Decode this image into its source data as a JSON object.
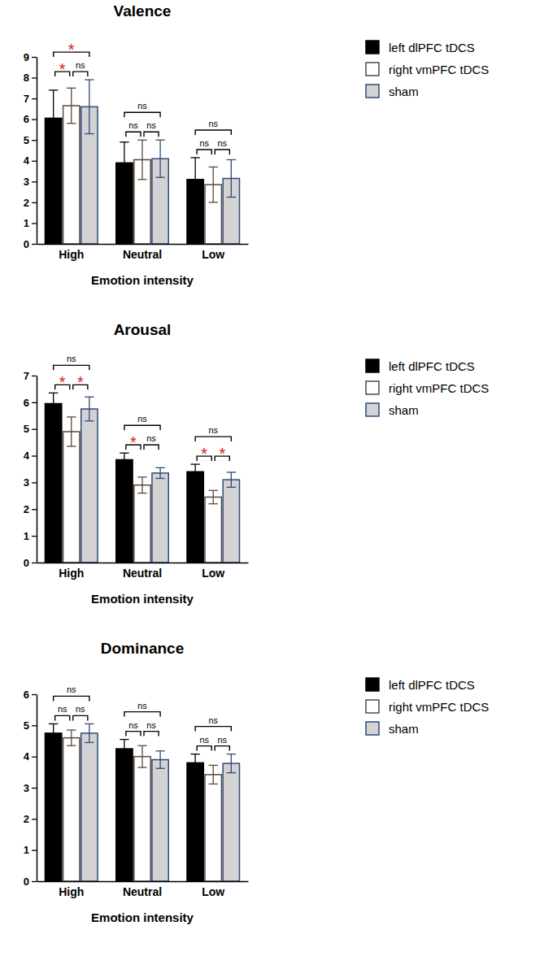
{
  "chart_data": [
    {
      "type": "bar",
      "title": "Valence",
      "x_label": "Emotion intensity",
      "categories": [
        "High",
        "Neutral",
        "Low"
      ],
      "series": [
        {
          "name": "left dlPFC tDCS",
          "color": "#000000",
          "values": [
            6.05,
            3.9,
            3.1
          ],
          "errors": [
            1.35,
            1.0,
            1.05
          ]
        },
        {
          "name": "right vmPFC tDCS",
          "color": "#ffffff",
          "values": [
            6.65,
            4.05,
            2.85
          ],
          "errors": [
            0.85,
            0.95,
            0.85
          ]
        },
        {
          "name": "sham",
          "color": "#d3d3d3",
          "values": [
            6.6,
            4.1,
            3.15
          ],
          "errors": [
            1.3,
            0.9,
            0.9
          ]
        }
      ],
      "ylim": [
        0,
        9
      ],
      "yticks": [
        0,
        1,
        2,
        3,
        4,
        5,
        6,
        7,
        8,
        9
      ],
      "grid": false,
      "legend": "right",
      "brackets": [
        {
          "category": "High",
          "from": "left dlPFC tDCS",
          "to": "right vmPFC tDCS",
          "label": "*"
        },
        {
          "category": "High",
          "from": "right vmPFC tDCS",
          "to": "sham",
          "label": "ns"
        },
        {
          "category": "High",
          "from": "left dlPFC tDCS",
          "to": "sham",
          "label": "*"
        },
        {
          "category": "Neutral",
          "from": "left dlPFC tDCS",
          "to": "right vmPFC tDCS",
          "label": "ns"
        },
        {
          "category": "Neutral",
          "from": "right vmPFC tDCS",
          "to": "sham",
          "label": "ns"
        },
        {
          "category": "Neutral",
          "from": "left dlPFC tDCS",
          "to": "sham",
          "label": "ns"
        },
        {
          "category": "Low",
          "from": "left dlPFC tDCS",
          "to": "right vmPFC tDCS",
          "label": "ns"
        },
        {
          "category": "Low",
          "from": "right vmPFC tDCS",
          "to": "sham",
          "label": "ns"
        },
        {
          "category": "Low",
          "from": "left dlPFC tDCS",
          "to": "sham",
          "label": "ns"
        }
      ]
    },
    {
      "type": "bar",
      "title": "Arousal",
      "x_label": "Emotion intensity",
      "categories": [
        "High",
        "Neutral",
        "Low"
      ],
      "series": [
        {
          "name": "left dlPFC tDCS",
          "color": "#000000",
          "values": [
            5.95,
            3.85,
            3.4
          ],
          "errors": [
            0.4,
            0.25,
            0.28
          ]
        },
        {
          "name": "right vmPFC tDCS",
          "color": "#ffffff",
          "values": [
            4.9,
            2.9,
            2.45
          ],
          "errors": [
            0.55,
            0.3,
            0.25
          ]
        },
        {
          "name": "sham",
          "color": "#d3d3d3",
          "values": [
            5.75,
            3.35,
            3.1
          ],
          "errors": [
            0.45,
            0.2,
            0.28
          ]
        }
      ],
      "ylim": [
        0,
        7
      ],
      "yticks": [
        0,
        1,
        2,
        3,
        4,
        5,
        6,
        7
      ],
      "grid": false,
      "legend": "right",
      "brackets": [
        {
          "category": "High",
          "from": "left dlPFC tDCS",
          "to": "right vmPFC tDCS",
          "label": "*"
        },
        {
          "category": "High",
          "from": "right vmPFC tDCS",
          "to": "sham",
          "label": "*"
        },
        {
          "category": "High",
          "from": "left dlPFC tDCS",
          "to": "sham",
          "label": "ns"
        },
        {
          "category": "Neutral",
          "from": "left dlPFC tDCS",
          "to": "right vmPFC tDCS",
          "label": "*"
        },
        {
          "category": "Neutral",
          "from": "right vmPFC tDCS",
          "to": "sham",
          "label": "ns"
        },
        {
          "category": "Neutral",
          "from": "left dlPFC tDCS",
          "to": "sham",
          "label": "ns"
        },
        {
          "category": "Low",
          "from": "left dlPFC tDCS",
          "to": "right vmPFC tDCS",
          "label": "*"
        },
        {
          "category": "Low",
          "from": "right vmPFC tDCS",
          "to": "sham",
          "label": "*"
        },
        {
          "category": "Low",
          "from": "left dlPFC tDCS",
          "to": "sham",
          "label": "ns"
        }
      ]
    },
    {
      "type": "bar",
      "title": "Dominance",
      "x_label": "Emotion intensity",
      "categories": [
        "High",
        "Neutral",
        "Low"
      ],
      "series": [
        {
          "name": "left dlPFC tDCS",
          "color": "#000000",
          "values": [
            4.75,
            4.25,
            3.8
          ],
          "errors": [
            0.3,
            0.3,
            0.28
          ]
        },
        {
          "name": "right vmPFC tDCS",
          "color": "#ffffff",
          "values": [
            4.6,
            4.0,
            3.42
          ],
          "errors": [
            0.25,
            0.35,
            0.3
          ]
        },
        {
          "name": "sham",
          "color": "#d3d3d3",
          "values": [
            4.75,
            3.9,
            3.78
          ],
          "errors": [
            0.3,
            0.28,
            0.3
          ]
        }
      ],
      "ylim": [
        0,
        6
      ],
      "yticks": [
        0,
        1,
        2,
        3,
        4,
        5,
        6
      ],
      "grid": false,
      "legend": "right",
      "brackets": [
        {
          "category": "High",
          "from": "left dlPFC tDCS",
          "to": "right vmPFC tDCS",
          "label": "ns"
        },
        {
          "category": "High",
          "from": "right vmPFC tDCS",
          "to": "sham",
          "label": "ns"
        },
        {
          "category": "High",
          "from": "left dlPFC tDCS",
          "to": "sham",
          "label": "ns"
        },
        {
          "category": "Neutral",
          "from": "left dlPFC tDCS",
          "to": "right vmPFC tDCS",
          "label": "ns"
        },
        {
          "category": "Neutral",
          "from": "right vmPFC tDCS",
          "to": "sham",
          "label": "ns"
        },
        {
          "category": "Neutral",
          "from": "left dlPFC tDCS",
          "to": "sham",
          "label": "ns"
        },
        {
          "category": "Low",
          "from": "left dlPFC tDCS",
          "to": "right vmPFC tDCS",
          "label": "ns"
        },
        {
          "category": "Low",
          "from": "right vmPFC tDCS",
          "to": "sham",
          "label": "ns"
        },
        {
          "category": "Low",
          "from": "left dlPFC tDCS",
          "to": "sham",
          "label": "ns"
        }
      ]
    }
  ]
}
